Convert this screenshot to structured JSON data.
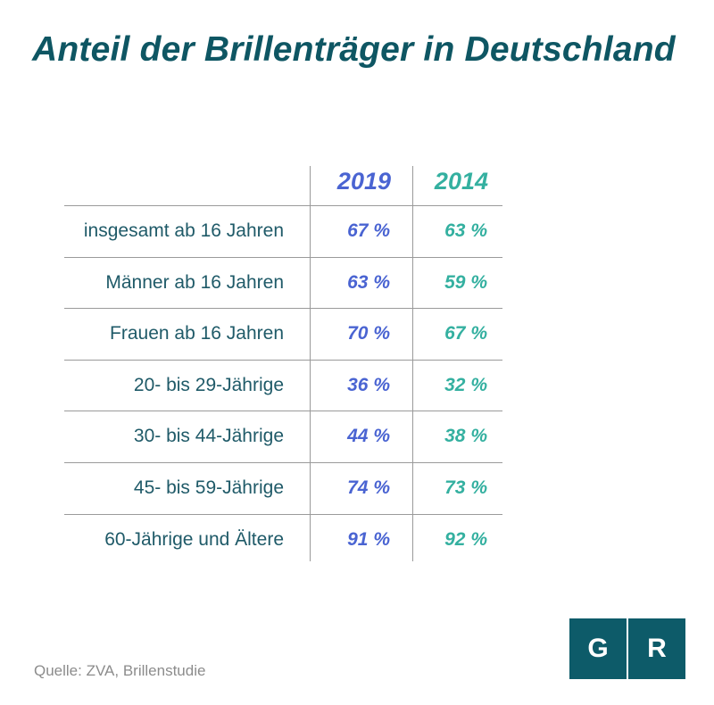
{
  "title": "Anteil der Brillenträger in Deutschland",
  "source": "Quelle: ZVA, Brillenstudie",
  "logo": {
    "left": "G",
    "right": "R"
  },
  "colors": {
    "title": "#0e5663",
    "2019": "#4a64d2",
    "2014": "#34b0a0",
    "labels": "#1f5a68",
    "logo_bg": "#0d5b69"
  },
  "chart_data": {
    "type": "table",
    "title": "Anteil der Brillenträger in Deutschland",
    "columns": [
      "2019",
      "2014"
    ],
    "rows": [
      {
        "label": "insgesamt ab 16 Jahren",
        "v2019": "67 %",
        "v2014": "63 %"
      },
      {
        "label": "Männer ab 16 Jahren",
        "v2019": "63 %",
        "v2014": "59 %"
      },
      {
        "label": "Frauen ab 16 Jahren",
        "v2019": "70 %",
        "v2014": "67 %"
      },
      {
        "label": "20- bis 29-Jährige",
        "v2019": "36 %",
        "v2014": "32 %"
      },
      {
        "label": "30- bis 44-Jährige",
        "v2019": "44 %",
        "v2014": "38 %"
      },
      {
        "label": "45- bis 59-Jährige",
        "v2019": "74 %",
        "v2014": "73 %"
      },
      {
        "label": "60-Jährige und Ältere",
        "v2019": "91 %",
        "v2014": "92 %"
      }
    ],
    "values_2019": [
      67,
      63,
      70,
      36,
      44,
      74,
      91
    ],
    "values_2014": [
      63,
      59,
      67,
      32,
      38,
      73,
      92
    ],
    "unit": "%"
  }
}
